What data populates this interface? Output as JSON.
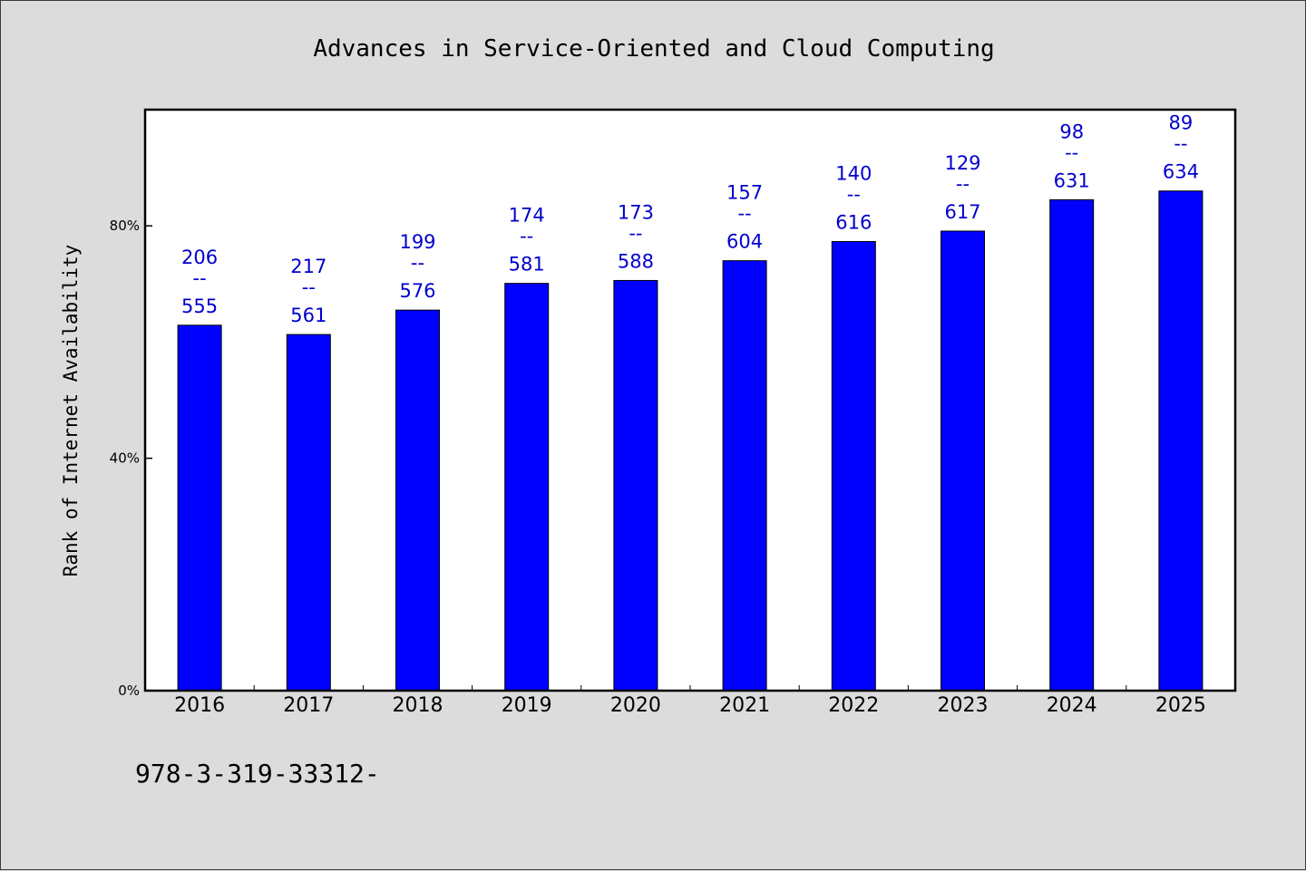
{
  "chart_data": {
    "type": "bar",
    "title": "Advances in Service-Oriented and Cloud Computing",
    "xlabel": "",
    "ylabel": "Rank of Internet Availability",
    "categories": [
      "2016",
      "2017",
      "2018",
      "2019",
      "2020",
      "2021",
      "2022",
      "2023",
      "2024",
      "2025"
    ],
    "series": [
      {
        "values": [
          62.9,
          61.3,
          65.5,
          70.1,
          70.6,
          74.0,
          77.3,
          79.1,
          84.5,
          86.0
        ],
        "label_top": [
          "206",
          "217",
          "199",
          "174",
          "173",
          "157",
          "140",
          "129",
          "98",
          "89"
        ],
        "label_bottom": [
          "555",
          "561",
          "576",
          "581",
          "588",
          "604",
          "616",
          "617",
          "631",
          "634"
        ]
      }
    ],
    "label_separator": "--",
    "ylim": [
      0,
      100
    ],
    "yticks": [
      0,
      40,
      80
    ],
    "ytick_labels": [
      "0%",
      "40%",
      "80%"
    ],
    "grid": false,
    "legend": "none",
    "bar_color": "#0000ff",
    "label_color": "#0000cc",
    "plot_background": "#ffffff",
    "page_background": "#dcdcdc"
  },
  "footnote": "978-3-319-33312-"
}
